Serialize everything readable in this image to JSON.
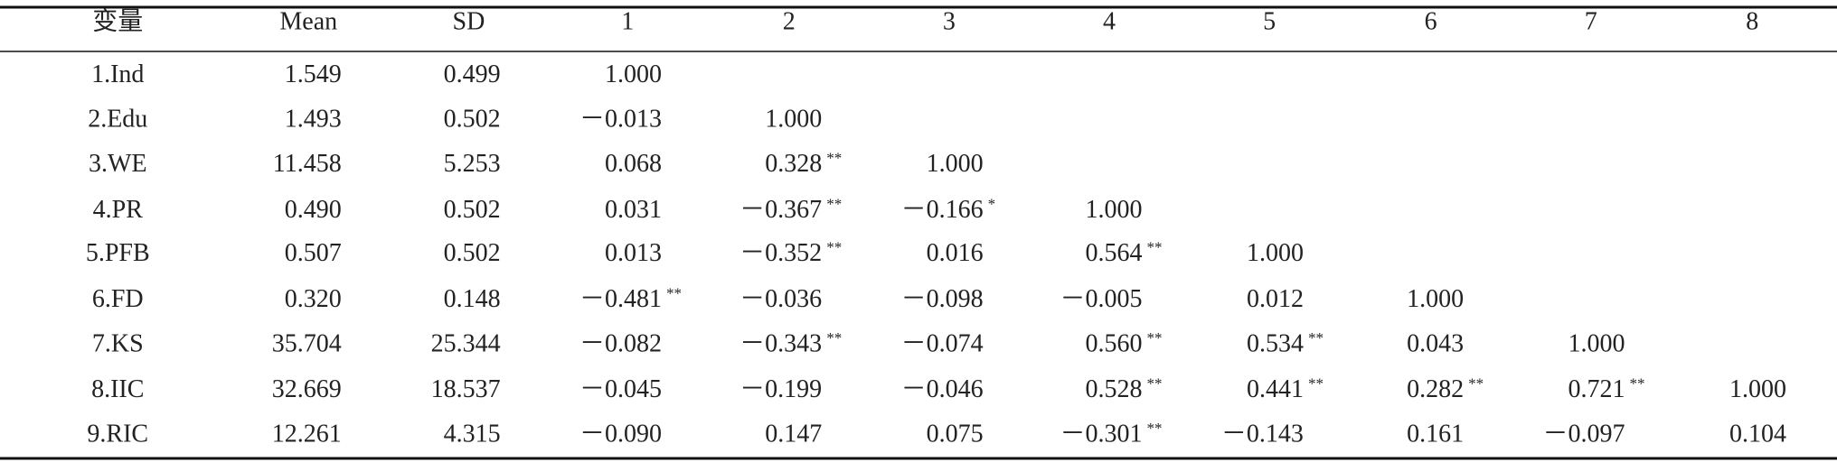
{
  "table": {
    "header": [
      "变量",
      "Mean",
      "SD",
      "1",
      "2",
      "3",
      "4",
      "5",
      "6",
      "7",
      "8"
    ],
    "rows": [
      [
        "1.Ind",
        "1.549",
        "0.499",
        "1.000"
      ],
      [
        "2.Edu",
        "1.493",
        "0.502",
        "－0.013",
        "1.000"
      ],
      [
        "3.WE",
        "11.458",
        "5.253",
        "0.068",
        {
          "text": "0.328",
          "sig": "**"
        },
        "1.000"
      ],
      [
        "4.PR",
        "0.490",
        "0.502",
        "0.031",
        {
          "text": "－0.367",
          "sig": "**"
        },
        {
          "text": "－0.166",
          "sig": "*"
        },
        "1.000"
      ],
      [
        "5.PFB",
        "0.507",
        "0.502",
        "0.013",
        {
          "text": "－0.352",
          "sig": "**"
        },
        "0.016",
        {
          "text": "0.564",
          "sig": "**"
        },
        "1.000"
      ],
      [
        "6.FD",
        "0.320",
        "0.148",
        {
          "text": "－0.481",
          "sig": "**"
        },
        "－0.036",
        "－0.098",
        "－0.005",
        "0.012",
        "1.000"
      ],
      [
        "7.KS",
        "35.704",
        "25.344",
        "－0.082",
        {
          "text": "－0.343",
          "sig": "**"
        },
        "－0.074",
        {
          "text": "0.560",
          "sig": "**"
        },
        {
          "text": "0.534",
          "sig": "**"
        },
        "0.043",
        "1.000"
      ],
      [
        "8.IIC",
        "32.669",
        "18.537",
        "－0.045",
        "－0.199",
        "－0.046",
        {
          "text": "0.528",
          "sig": "**"
        },
        {
          "text": "0.441",
          "sig": "**"
        },
        {
          "text": "0.282",
          "sig": "**"
        },
        {
          "text": "0.721",
          "sig": "**"
        },
        "1.000"
      ],
      [
        "9.RIC",
        "12.261",
        "4.315",
        "－0.090",
        "0.147",
        "0.075",
        {
          "text": "－0.301",
          "sig": "**"
        },
        "－0.143",
        "0.161",
        "－0.097",
        "0.104"
      ]
    ]
  }
}
